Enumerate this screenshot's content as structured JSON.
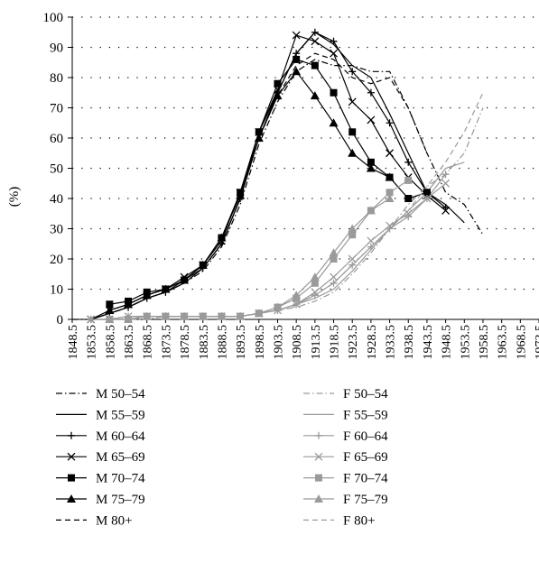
{
  "chart_data": {
    "type": "line",
    "title": "",
    "xlabel": "",
    "ylabel": "(%)",
    "ylim": [
      0,
      100
    ],
    "y_ticks": [
      0,
      10,
      20,
      30,
      40,
      50,
      60,
      70,
      80,
      90,
      100
    ],
    "xlim": [
      1848.5,
      1973.5
    ],
    "x_ticks": [
      "1848.5",
      "1853.5",
      "1858.5",
      "1863.5",
      "1868.5",
      "1873.5",
      "1878.5",
      "1883.5",
      "1888.5",
      "1893.5",
      "1898.5",
      "1903.5",
      "1908.5",
      "1913.5",
      "1918.5",
      "1923.5",
      "1928.5",
      "1933.5",
      "1938.5",
      "1943.5",
      "1948.5",
      "1953.5",
      "1958.5",
      "1963.5",
      "1968.5",
      "1973.5"
    ],
    "grid": "horizontal dotted",
    "legend_position": "bottom, two columns",
    "colors": {
      "male": "#000000",
      "female": "#9a9a9a"
    },
    "series": [
      {
        "name": "M 50–54",
        "dash": "dashdot",
        "marker": "none",
        "color": "#000000",
        "x": [
          1848.5,
          1853.5,
          1858.5,
          1863.5,
          1868.5,
          1873.5,
          1878.5,
          1883.5,
          1888.5,
          1893.5,
          1898.5,
          1903.5,
          1908.5,
          1913.5,
          1918.5,
          1923.5,
          1928.5,
          1933.5,
          1938.5,
          1943.5,
          1948.5,
          1953.5,
          1958.5
        ],
        "y": [
          0,
          0,
          2,
          4,
          7,
          9,
          12,
          16,
          24,
          38,
          58,
          72,
          82,
          86,
          84,
          84,
          82,
          82,
          70,
          55,
          42,
          38,
          28
        ]
      },
      {
        "name": "M 55–59",
        "dash": "solid",
        "marker": "none",
        "color": "#000000",
        "x": [
          1853.5,
          1858.5,
          1863.5,
          1868.5,
          1873.5,
          1878.5,
          1883.5,
          1888.5,
          1893.5,
          1898.5,
          1903.5,
          1908.5,
          1913.5,
          1918.5,
          1923.5,
          1928.5,
          1933.5,
          1938.5,
          1943.5,
          1948.5,
          1953.5
        ],
        "y": [
          0,
          2,
          4,
          7,
          9,
          12,
          17,
          25,
          40,
          60,
          75,
          88,
          95,
          91,
          84,
          80,
          68,
          55,
          42,
          38,
          32
        ]
      },
      {
        "name": "M 60–64",
        "dash": "solid",
        "marker": "plus",
        "color": "#000000",
        "x": [
          1853.5,
          1858.5,
          1863.5,
          1868.5,
          1873.5,
          1878.5,
          1883.5,
          1888.5,
          1893.5,
          1898.5,
          1903.5,
          1908.5,
          1913.5,
          1918.5,
          1923.5,
          1928.5,
          1933.5,
          1938.5,
          1943.5,
          1948.5
        ],
        "y": [
          0,
          2,
          4,
          7,
          9,
          13,
          17,
          25,
          40,
          62,
          75,
          88,
          95,
          92,
          82,
          75,
          65,
          52,
          42,
          37
        ]
      },
      {
        "name": "M 65–69",
        "dash": "solid",
        "marker": "x",
        "color": "#000000",
        "x": [
          1853.5,
          1858.5,
          1863.5,
          1868.5,
          1873.5,
          1878.5,
          1883.5,
          1888.5,
          1893.5,
          1898.5,
          1903.5,
          1908.5,
          1913.5,
          1918.5,
          1923.5,
          1928.5,
          1933.5,
          1938.5,
          1943.5,
          1948.5
        ],
        "y": [
          0,
          3,
          5,
          8,
          10,
          14,
          18,
          26,
          42,
          62,
          76,
          94,
          92,
          88,
          72,
          66,
          55,
          47,
          41,
          36
        ]
      },
      {
        "name": "M 70–74",
        "dash": "solid",
        "marker": "square",
        "color": "#000000",
        "x": [
          1858.5,
          1863.5,
          1868.5,
          1873.5,
          1878.5,
          1883.5,
          1888.5,
          1893.5,
          1898.5,
          1903.5,
          1908.5,
          1913.5,
          1918.5,
          1923.5,
          1928.5,
          1933.5,
          1938.5,
          1943.5
        ],
        "y": [
          5,
          6,
          9,
          10,
          13,
          18,
          27,
          42,
          62,
          78,
          86,
          84,
          75,
          62,
          52,
          47,
          40,
          42
        ]
      },
      {
        "name": "M 75–79",
        "dash": "solid",
        "marker": "triangle",
        "color": "#000000",
        "x": [
          1858.5,
          1863.5,
          1868.5,
          1873.5,
          1878.5,
          1883.5,
          1888.5,
          1893.5,
          1898.5,
          1903.5,
          1908.5,
          1913.5,
          1918.5,
          1923.5,
          1928.5,
          1933.5
        ],
        "y": [
          3,
          5,
          8,
          10,
          13,
          18,
          27,
          41,
          60,
          74,
          82,
          74,
          65,
          55,
          50,
          47
        ]
      },
      {
        "name": "M 80+",
        "dash": "dashed",
        "marker": "none",
        "color": "#000000",
        "x": [
          1853.5,
          1858.5,
          1863.5,
          1868.5,
          1873.5,
          1878.5,
          1883.5,
          1888.5,
          1893.5,
          1898.5,
          1903.5,
          1908.5,
          1913.5,
          1918.5,
          1923.5,
          1928.5,
          1933.5,
          1938.5,
          1943.5
        ],
        "y": [
          0,
          2,
          4,
          7,
          9,
          12,
          17,
          25,
          40,
          60,
          74,
          84,
          88,
          86,
          80,
          78,
          80,
          70,
          55
        ]
      },
      {
        "name": "F 50–54",
        "dash": "dashdot",
        "marker": "none",
        "color": "#9a9a9a",
        "x": [
          1853.5,
          1858.5,
          1863.5,
          1868.5,
          1873.5,
          1878.5,
          1883.5,
          1888.5,
          1893.5,
          1898.5,
          1903.5,
          1908.5,
          1913.5,
          1918.5,
          1923.5,
          1928.5,
          1933.5,
          1938.5,
          1943.5,
          1948.5,
          1953.5,
          1958.5
        ],
        "y": [
          0,
          0,
          0,
          0,
          1,
          1,
          1,
          1,
          1,
          2,
          3,
          4,
          6,
          9,
          15,
          22,
          30,
          38,
          44,
          48,
          55,
          70
        ]
      },
      {
        "name": "F 55–59",
        "dash": "solid",
        "marker": "none",
        "color": "#9a9a9a",
        "x": [
          1853.5,
          1858.5,
          1863.5,
          1868.5,
          1873.5,
          1878.5,
          1883.5,
          1888.5,
          1893.5,
          1898.5,
          1903.5,
          1908.5,
          1913.5,
          1918.5,
          1923.5,
          1928.5,
          1933.5,
          1938.5,
          1943.5,
          1948.5,
          1953.5
        ],
        "y": [
          0,
          0,
          1,
          1,
          1,
          1,
          1,
          1,
          1,
          2,
          3,
          5,
          7,
          10,
          16,
          23,
          30,
          36,
          42,
          50,
          52
        ]
      },
      {
        "name": "F 60–64",
        "dash": "solid",
        "marker": "plus",
        "color": "#9a9a9a",
        "x": [
          1853.5,
          1858.5,
          1863.5,
          1868.5,
          1873.5,
          1878.5,
          1883.5,
          1888.5,
          1893.5,
          1898.5,
          1903.5,
          1908.5,
          1913.5,
          1918.5,
          1923.5,
          1928.5,
          1933.5,
          1938.5,
          1943.5,
          1948.5
        ],
        "y": [
          0,
          0,
          1,
          1,
          1,
          1,
          1,
          1,
          1,
          2,
          3,
          5,
          8,
          12,
          18,
          24,
          30,
          34,
          40,
          48
        ]
      },
      {
        "name": "F 65–69",
        "dash": "solid",
        "marker": "x",
        "color": "#9a9a9a",
        "x": [
          1853.5,
          1858.5,
          1863.5,
          1868.5,
          1873.5,
          1878.5,
          1883.5,
          1888.5,
          1893.5,
          1898.5,
          1903.5,
          1908.5,
          1913.5,
          1918.5,
          1923.5,
          1928.5,
          1933.5,
          1938.5,
          1943.5,
          1948.5
        ],
        "y": [
          0,
          0,
          1,
          1,
          1,
          1,
          1,
          1,
          1,
          2,
          3,
          5,
          9,
          14,
          20,
          26,
          31,
          35,
          40,
          45
        ]
      },
      {
        "name": "F 70–74",
        "dash": "solid",
        "marker": "square",
        "color": "#9a9a9a",
        "x": [
          1858.5,
          1863.5,
          1868.5,
          1873.5,
          1878.5,
          1883.5,
          1888.5,
          1893.5,
          1898.5,
          1903.5,
          1908.5,
          1913.5,
          1918.5,
          1923.5,
          1928.5,
          1933.5,
          1938.5
        ],
        "y": [
          0,
          0,
          1,
          1,
          1,
          1,
          1,
          1,
          2,
          4,
          7,
          12,
          20,
          28,
          36,
          42,
          46
        ]
      },
      {
        "name": "F 75–79",
        "dash": "solid",
        "marker": "triangle",
        "color": "#9a9a9a",
        "x": [
          1858.5,
          1863.5,
          1868.5,
          1873.5,
          1878.5,
          1883.5,
          1888.5,
          1893.5,
          1898.5,
          1903.5,
          1908.5,
          1913.5,
          1918.5,
          1923.5,
          1928.5,
          1933.5
        ],
        "y": [
          0,
          0,
          1,
          1,
          1,
          1,
          1,
          1,
          2,
          4,
          8,
          14,
          22,
          30,
          36,
          40
        ]
      },
      {
        "name": "F 80+",
        "dash": "dashed",
        "marker": "none",
        "color": "#9a9a9a",
        "x": [
          1853.5,
          1858.5,
          1863.5,
          1868.5,
          1873.5,
          1878.5,
          1883.5,
          1888.5,
          1893.5,
          1898.5,
          1903.5,
          1908.5,
          1913.5,
          1918.5,
          1923.5,
          1928.5,
          1933.5,
          1938.5,
          1943.5,
          1948.5,
          1953.5,
          1958.5
        ],
        "y": [
          0,
          0,
          0,
          1,
          1,
          1,
          1,
          1,
          1,
          2,
          3,
          5,
          8,
          12,
          18,
          24,
          30,
          36,
          44,
          52,
          62,
          75
        ]
      }
    ]
  }
}
